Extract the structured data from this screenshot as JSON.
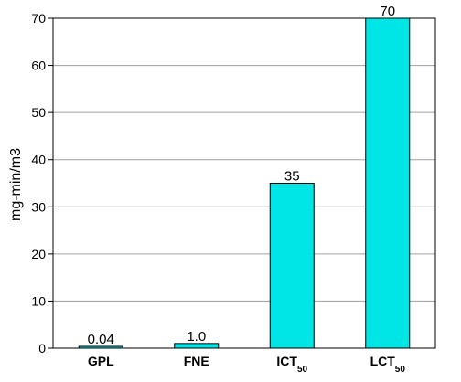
{
  "chart_data": {
    "type": "bar",
    "title": "",
    "xlabel": "",
    "ylabel": "mg-min/m3",
    "ylim": [
      0,
      70
    ],
    "yticks": [
      0,
      10,
      20,
      30,
      40,
      50,
      60,
      70
    ],
    "grid": true,
    "bar_color": "#00e5e5",
    "categories": [
      {
        "label": "GPL",
        "sub": ""
      },
      {
        "label": "FNE",
        "sub": ""
      },
      {
        "label": "ICT",
        "sub": "50"
      },
      {
        "label": "LCT",
        "sub": "50"
      }
    ],
    "values": [
      0.04,
      1.0,
      35,
      70
    ],
    "data_labels": [
      "0.04",
      "1.0",
      "35",
      "70"
    ]
  }
}
